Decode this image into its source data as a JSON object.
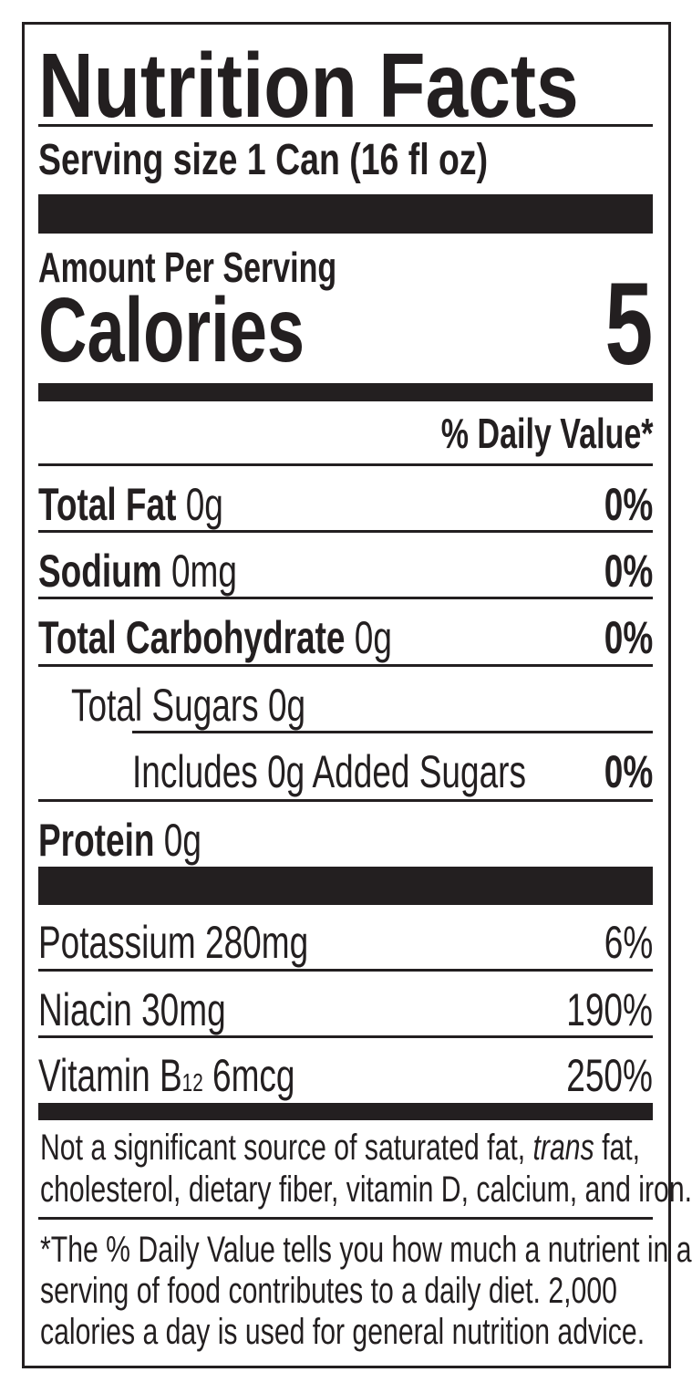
{
  "title": "Nutrition Facts",
  "serving_size": "Serving size 1 Can (16 fl oz)",
  "amount_per_serving": "Amount Per Serving",
  "calories": {
    "label": "Calories",
    "value": "5"
  },
  "dv_header": "% Daily Value*",
  "nutrients": [
    {
      "name": "Total Fat",
      "amount": "0g",
      "dv": "0%"
    },
    {
      "name": "Sodium",
      "amount": "0mg",
      "dv": "0%"
    },
    {
      "name": "Total Carbohydrate",
      "amount": "0g",
      "dv": "0%"
    },
    {
      "name": "Total Sugars 0g",
      "amount": "",
      "dv": ""
    },
    {
      "name": "Includes 0g Added Sugars",
      "amount": "",
      "dv": "0%"
    },
    {
      "name": "Protein",
      "amount": "0g",
      "dv": ""
    }
  ],
  "vitamins": [
    {
      "name": "Potassium 280mg",
      "dv": "6%"
    },
    {
      "name": "Niacin 30mg",
      "dv": "190%"
    },
    {
      "name_prefix": "Vitamin B",
      "name_sub": "12",
      "name_suffix": " 6mcg",
      "dv": "250%"
    }
  ],
  "footnote1": {
    "part1": "Not a significant source of saturated fat, ",
    "italic": "trans",
    "part2": " fat,",
    "line2": "cholesterol, dietary fiber, vitamin D, calcium, and iron."
  },
  "footnote2": [
    "*The % Daily Value tells you how much a nutrient in a",
    "serving of food contributes to a daily diet. 2,000",
    "calories a day is used for general nutrition advice."
  ]
}
